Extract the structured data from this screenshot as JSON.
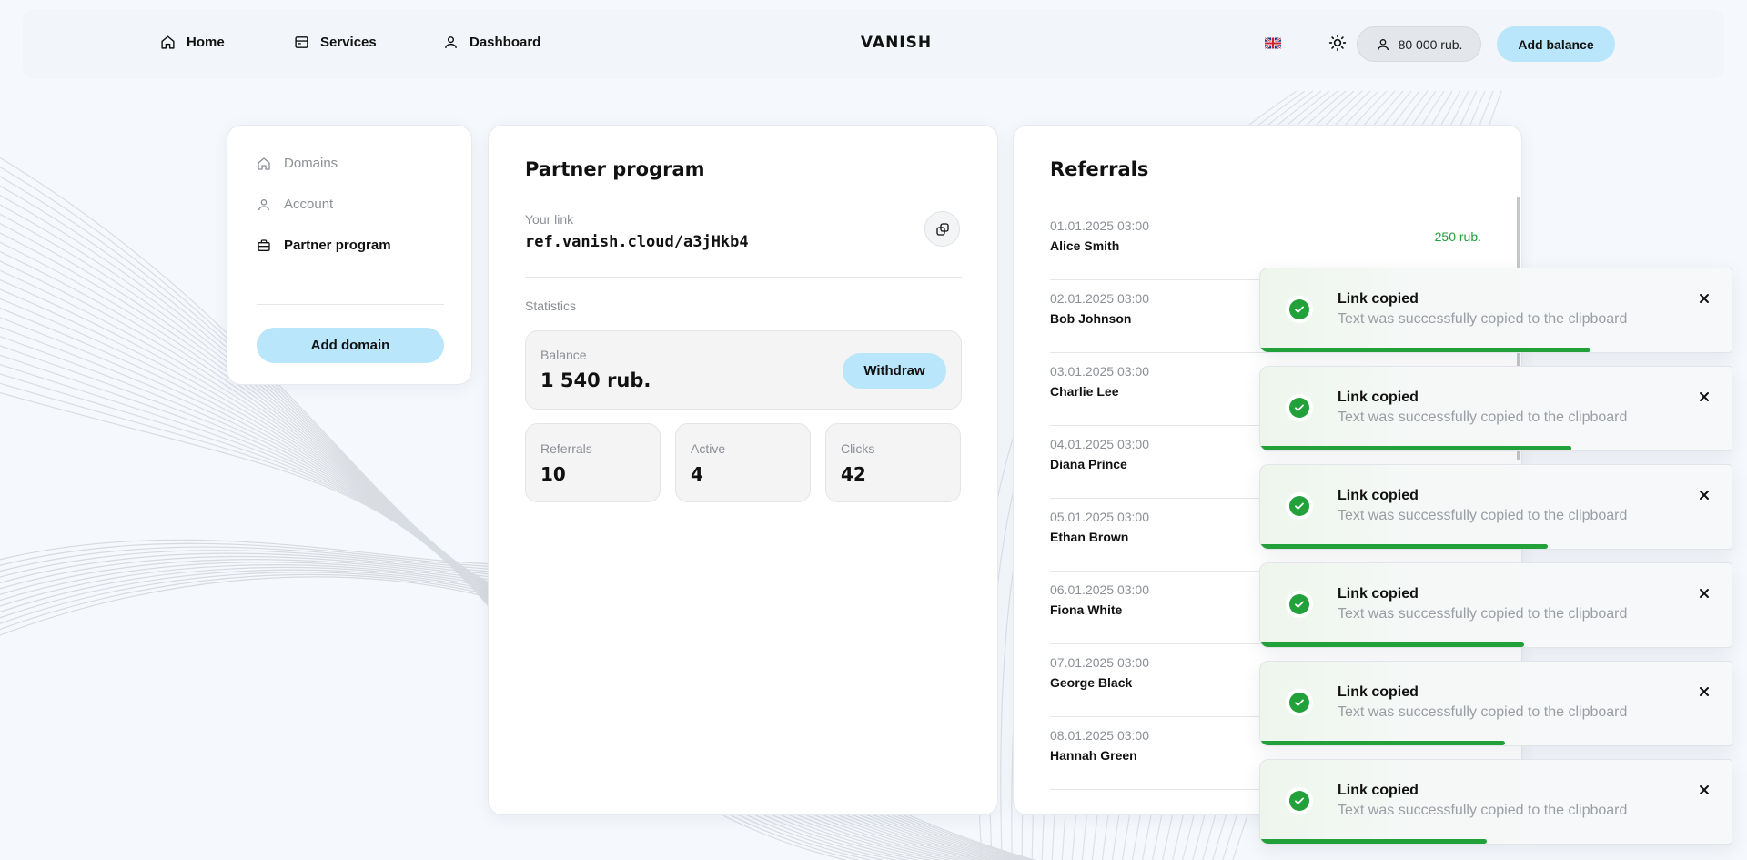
{
  "header": {
    "nav": [
      {
        "label": "Home",
        "icon": "home-icon"
      },
      {
        "label": "Services",
        "icon": "services-icon"
      },
      {
        "label": "Dashboard",
        "icon": "user-icon"
      }
    ],
    "brand": "VANISH",
    "language_flag": "uk-flag-icon",
    "theme_icon": "sun-icon",
    "balance": "80 000 rub.",
    "add_balance_label": "Add balance"
  },
  "sidebar": {
    "items": [
      {
        "label": "Domains",
        "icon": "home-icon",
        "active": false
      },
      {
        "label": "Account",
        "icon": "user-icon",
        "active": false
      },
      {
        "label": "Partner program",
        "icon": "briefcase-icon",
        "active": true
      }
    ],
    "add_domain_label": "Add domain"
  },
  "partner": {
    "title": "Partner program",
    "link_label": "Your link",
    "link": "ref.vanish.cloud/a3jHkb4",
    "statistics_label": "Statistics",
    "balance_label": "Balance",
    "balance_value": "1 540 rub.",
    "withdraw_label": "Withdraw",
    "stats": [
      {
        "label": "Referrals",
        "value": "10"
      },
      {
        "label": "Active",
        "value": "4"
      },
      {
        "label": "Clicks",
        "value": "42"
      }
    ]
  },
  "referrals": {
    "title": "Referrals",
    "rows": [
      {
        "date": "01.01.2025 03:00",
        "name": "Alice Smith",
        "amount": "250 rub."
      },
      {
        "date": "02.01.2025 03:00",
        "name": "Bob Johnson",
        "amount": ""
      },
      {
        "date": "03.01.2025 03:00",
        "name": "Charlie Lee",
        "amount": ""
      },
      {
        "date": "04.01.2025 03:00",
        "name": "Diana Prince",
        "amount": ""
      },
      {
        "date": "05.01.2025 03:00",
        "name": "Ethan Brown",
        "amount": ""
      },
      {
        "date": "06.01.2025 03:00",
        "name": "Fiona White",
        "amount": ""
      },
      {
        "date": "07.01.2025 03:00",
        "name": "George Black",
        "amount": ""
      },
      {
        "date": "08.01.2025 03:00",
        "name": "Hannah Green",
        "amount": ""
      }
    ]
  },
  "toasts": [
    {
      "title": "Link copied",
      "text": "Text was successfully copied to the clipboard",
      "progress": 0.7
    },
    {
      "title": "Link copied",
      "text": "Text was successfully copied to the clipboard",
      "progress": 0.66
    },
    {
      "title": "Link copied",
      "text": "Text was successfully copied to the clipboard",
      "progress": 0.61
    },
    {
      "title": "Link copied",
      "text": "Text was successfully copied to the clipboard",
      "progress": 0.56
    },
    {
      "title": "Link copied",
      "text": "Text was successfully copied to the clipboard",
      "progress": 0.52
    },
    {
      "title": "Link copied",
      "text": "Text was successfully copied to the clipboard",
      "progress": 0.48
    }
  ],
  "colors": {
    "accent": "#b9e6fb",
    "success": "#22a03a",
    "muted_text": "#8b8f96",
    "background": "#f5f8fc"
  }
}
